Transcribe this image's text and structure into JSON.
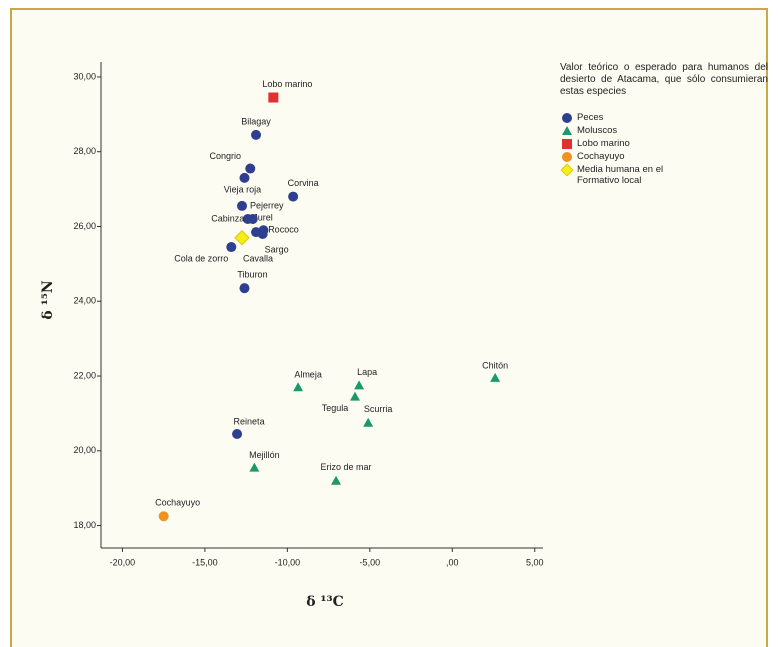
{
  "chart_data": {
    "type": "scatter",
    "xlabel": "δ ¹³C",
    "ylabel": "δ ¹⁵N",
    "legend_title": "Valor teórico o esperado para humanos del desierto de Atacama, que sólo consumieran estas especies",
    "xlim": [
      -21.3,
      5.5
    ],
    "ylim": [
      17.4,
      30.4
    ],
    "xticks": [
      {
        "value": -20,
        "label": "-20,00"
      },
      {
        "value": -15,
        "label": "-15,00"
      },
      {
        "value": -10,
        "label": "-10,00"
      },
      {
        "value": -5,
        "label": "-5,00"
      },
      {
        "value": 0,
        "label": ",00"
      },
      {
        "value": 5,
        "label": "5,00"
      }
    ],
    "yticks": [
      {
        "value": 18,
        "label": "18,00"
      },
      {
        "value": 20,
        "label": "20,00"
      },
      {
        "value": 22,
        "label": "22,00"
      },
      {
        "value": 24,
        "label": "24,00"
      },
      {
        "value": 26,
        "label": "26,00"
      },
      {
        "value": 28,
        "label": "28,00"
      },
      {
        "value": 30,
        "label": "30,00"
      }
    ],
    "series": [
      {
        "name": "Peces",
        "color": "#2e3f8f",
        "marker": "circle",
        "labels": [
          "Bilagay",
          "Congrio",
          "Vieja roja",
          "Corvina",
          "Jurel",
          "Pejerrey",
          "Cabinza",
          "Rococo",
          "Sargo",
          "Cavalla",
          "Cola de zorro",
          "Tiburon",
          "Reineta"
        ],
        "x": [
          -11.9,
          -12.25,
          -12.6,
          -9.65,
          -12.75,
          -12.1,
          -12.4,
          -11.45,
          -11.5,
          -11.9,
          -13.4,
          -12.6,
          -13.05
        ],
        "values": [
          28.45,
          27.55,
          27.3,
          26.8,
          26.55,
          26.2,
          26.2,
          25.9,
          25.8,
          25.85,
          25.45,
          24.35,
          20.45
        ]
      },
      {
        "name": "Moluscos",
        "color": "#1a9a6a",
        "marker": "triangle",
        "labels": [
          "Almeja",
          "Lapa",
          "Tegula",
          "Scurria",
          "Chitón",
          "Mejillón",
          "Erizo de mar"
        ],
        "x": [
          -9.35,
          -5.65,
          -5.9,
          -5.1,
          2.6,
          -12.0,
          -7.05
        ],
        "values": [
          21.7,
          21.75,
          21.45,
          20.75,
          21.95,
          19.55,
          19.2
        ]
      },
      {
        "name": "Lobo marino",
        "color": "#e03030",
        "marker": "square",
        "labels": [
          "Lobo marino"
        ],
        "x": [
          -10.85
        ],
        "values": [
          29.45
        ]
      },
      {
        "name": "Cochayuyo",
        "color": "#f0901e",
        "marker": "circle",
        "labels": [
          "Cochayuyo"
        ],
        "x": [
          -17.5
        ],
        "values": [
          18.25
        ]
      },
      {
        "name": "Media humana en el Formativo local",
        "color": "#f5ec1a",
        "marker": "diamond",
        "x": [
          -12.75
        ],
        "values": [
          25.7
        ]
      }
    ]
  }
}
